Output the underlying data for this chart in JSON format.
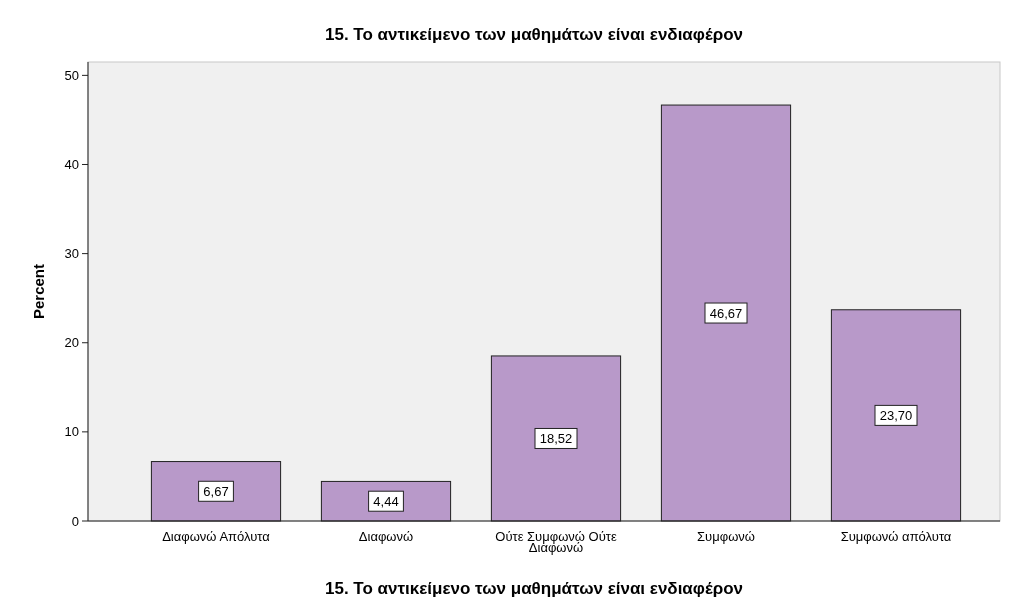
{
  "chart_data": {
    "type": "bar",
    "title": "15. Το αντικείμενο των μαθημάτων είναι ενδιαφέρον",
    "xlabel": "15. Το αντικείμενο των μαθημάτων είναι ενδιαφέρον",
    "ylabel": "Percent",
    "categories": [
      "Διαφωνώ Απόλυτα",
      "Διαφωνώ",
      "Ούτε Συμφωνώ Ούτε Διαφωνώ",
      "Συμφωνώ",
      "Συμφωνώ απόλυτα"
    ],
    "values": [
      6.67,
      4.44,
      18.52,
      46.67,
      23.7
    ],
    "value_labels": [
      "6,67",
      "4,44",
      "18,52",
      "46,67",
      "23,70"
    ],
    "color": "#b899c9",
    "ylim": [
      0,
      51.5
    ],
    "yticks": [
      0,
      10,
      20,
      30,
      40,
      50
    ],
    "grid": false
  }
}
